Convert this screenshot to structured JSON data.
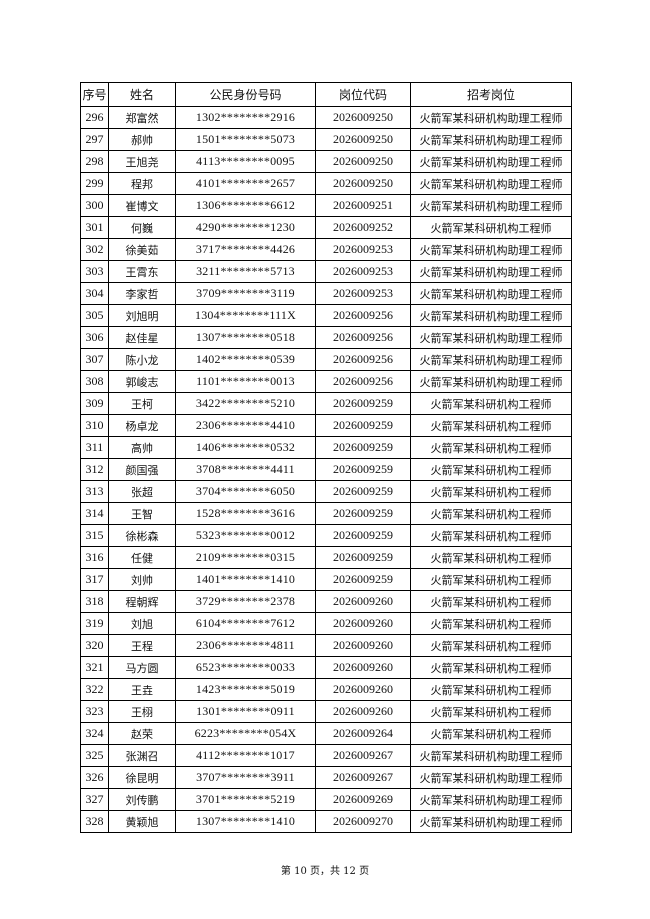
{
  "table": {
    "headers": [
      "序号",
      "姓名",
      "公民身份号码",
      "岗位代码",
      "招考岗位"
    ],
    "rows": [
      [
        "296",
        "郑富然",
        "1302********2916",
        "2026009250",
        "火箭军某科研机构助理工程师"
      ],
      [
        "297",
        "郝帅",
        "1501********5073",
        "2026009250",
        "火箭军某科研机构助理工程师"
      ],
      [
        "298",
        "王旭尧",
        "4113********0095",
        "2026009250",
        "火箭军某科研机构助理工程师"
      ],
      [
        "299",
        "程邦",
        "4101********2657",
        "2026009250",
        "火箭军某科研机构助理工程师"
      ],
      [
        "300",
        "崔博文",
        "1306********6612",
        "2026009251",
        "火箭军某科研机构助理工程师"
      ],
      [
        "301",
        "何巍",
        "4290********1230",
        "2026009252",
        "火箭军某科研机构工程师"
      ],
      [
        "302",
        "徐美茹",
        "3717********4426",
        "2026009253",
        "火箭军某科研机构助理工程师"
      ],
      [
        "303",
        "王霄东",
        "3211********5713",
        "2026009253",
        "火箭军某科研机构助理工程师"
      ],
      [
        "304",
        "李家哲",
        "3709********3119",
        "2026009253",
        "火箭军某科研机构助理工程师"
      ],
      [
        "305",
        "刘旭明",
        "1304********111X",
        "2026009256",
        "火箭军某科研机构助理工程师"
      ],
      [
        "306",
        "赵佳星",
        "1307********0518",
        "2026009256",
        "火箭军某科研机构助理工程师"
      ],
      [
        "307",
        "陈小龙",
        "1402********0539",
        "2026009256",
        "火箭军某科研机构助理工程师"
      ],
      [
        "308",
        "郭峻志",
        "1101********0013",
        "2026009256",
        "火箭军某科研机构助理工程师"
      ],
      [
        "309",
        "王柯",
        "3422********5210",
        "2026009259",
        "火箭军某科研机构工程师"
      ],
      [
        "310",
        "杨卓龙",
        "2306********4410",
        "2026009259",
        "火箭军某科研机构工程师"
      ],
      [
        "311",
        "高帅",
        "1406********0532",
        "2026009259",
        "火箭军某科研机构工程师"
      ],
      [
        "312",
        "颜国强",
        "3708********4411",
        "2026009259",
        "火箭军某科研机构工程师"
      ],
      [
        "313",
        "张超",
        "3704********6050",
        "2026009259",
        "火箭军某科研机构工程师"
      ],
      [
        "314",
        "王智",
        "1528********3616",
        "2026009259",
        "火箭军某科研机构工程师"
      ],
      [
        "315",
        "徐彬森",
        "5323********0012",
        "2026009259",
        "火箭军某科研机构工程师"
      ],
      [
        "316",
        "任健",
        "2109********0315",
        "2026009259",
        "火箭军某科研机构工程师"
      ],
      [
        "317",
        "刘帅",
        "1401********1410",
        "2026009259",
        "火箭军某科研机构工程师"
      ],
      [
        "318",
        "程朝辉",
        "3729********2378",
        "2026009260",
        "火箭军某科研机构工程师"
      ],
      [
        "319",
        "刘旭",
        "6104********7612",
        "2026009260",
        "火箭军某科研机构工程师"
      ],
      [
        "320",
        "王程",
        "2306********4811",
        "2026009260",
        "火箭军某科研机构工程师"
      ],
      [
        "321",
        "马方圆",
        "6523********0033",
        "2026009260",
        "火箭军某科研机构工程师"
      ],
      [
        "322",
        "王垚",
        "1423********5019",
        "2026009260",
        "火箭军某科研机构工程师"
      ],
      [
        "323",
        "王栩",
        "1301********0911",
        "2026009260",
        "火箭军某科研机构工程师"
      ],
      [
        "324",
        "赵荣",
        "6223********054X",
        "2026009264",
        "火箭军某科研机构工程师"
      ],
      [
        "325",
        "张渊召",
        "4112********1017",
        "2026009267",
        "火箭军某科研机构助理工程师"
      ],
      [
        "326",
        "徐昆明",
        "3707********3911",
        "2026009267",
        "火箭军某科研机构助理工程师"
      ],
      [
        "327",
        "刘传鹏",
        "3701********5219",
        "2026009269",
        "火箭军某科研机构助理工程师"
      ],
      [
        "328",
        "黄颖旭",
        "1307********1410",
        "2026009270",
        "火箭军某科研机构助理工程师"
      ]
    ]
  },
  "footer": {
    "page_label": "第 10 页，共 12 页"
  }
}
